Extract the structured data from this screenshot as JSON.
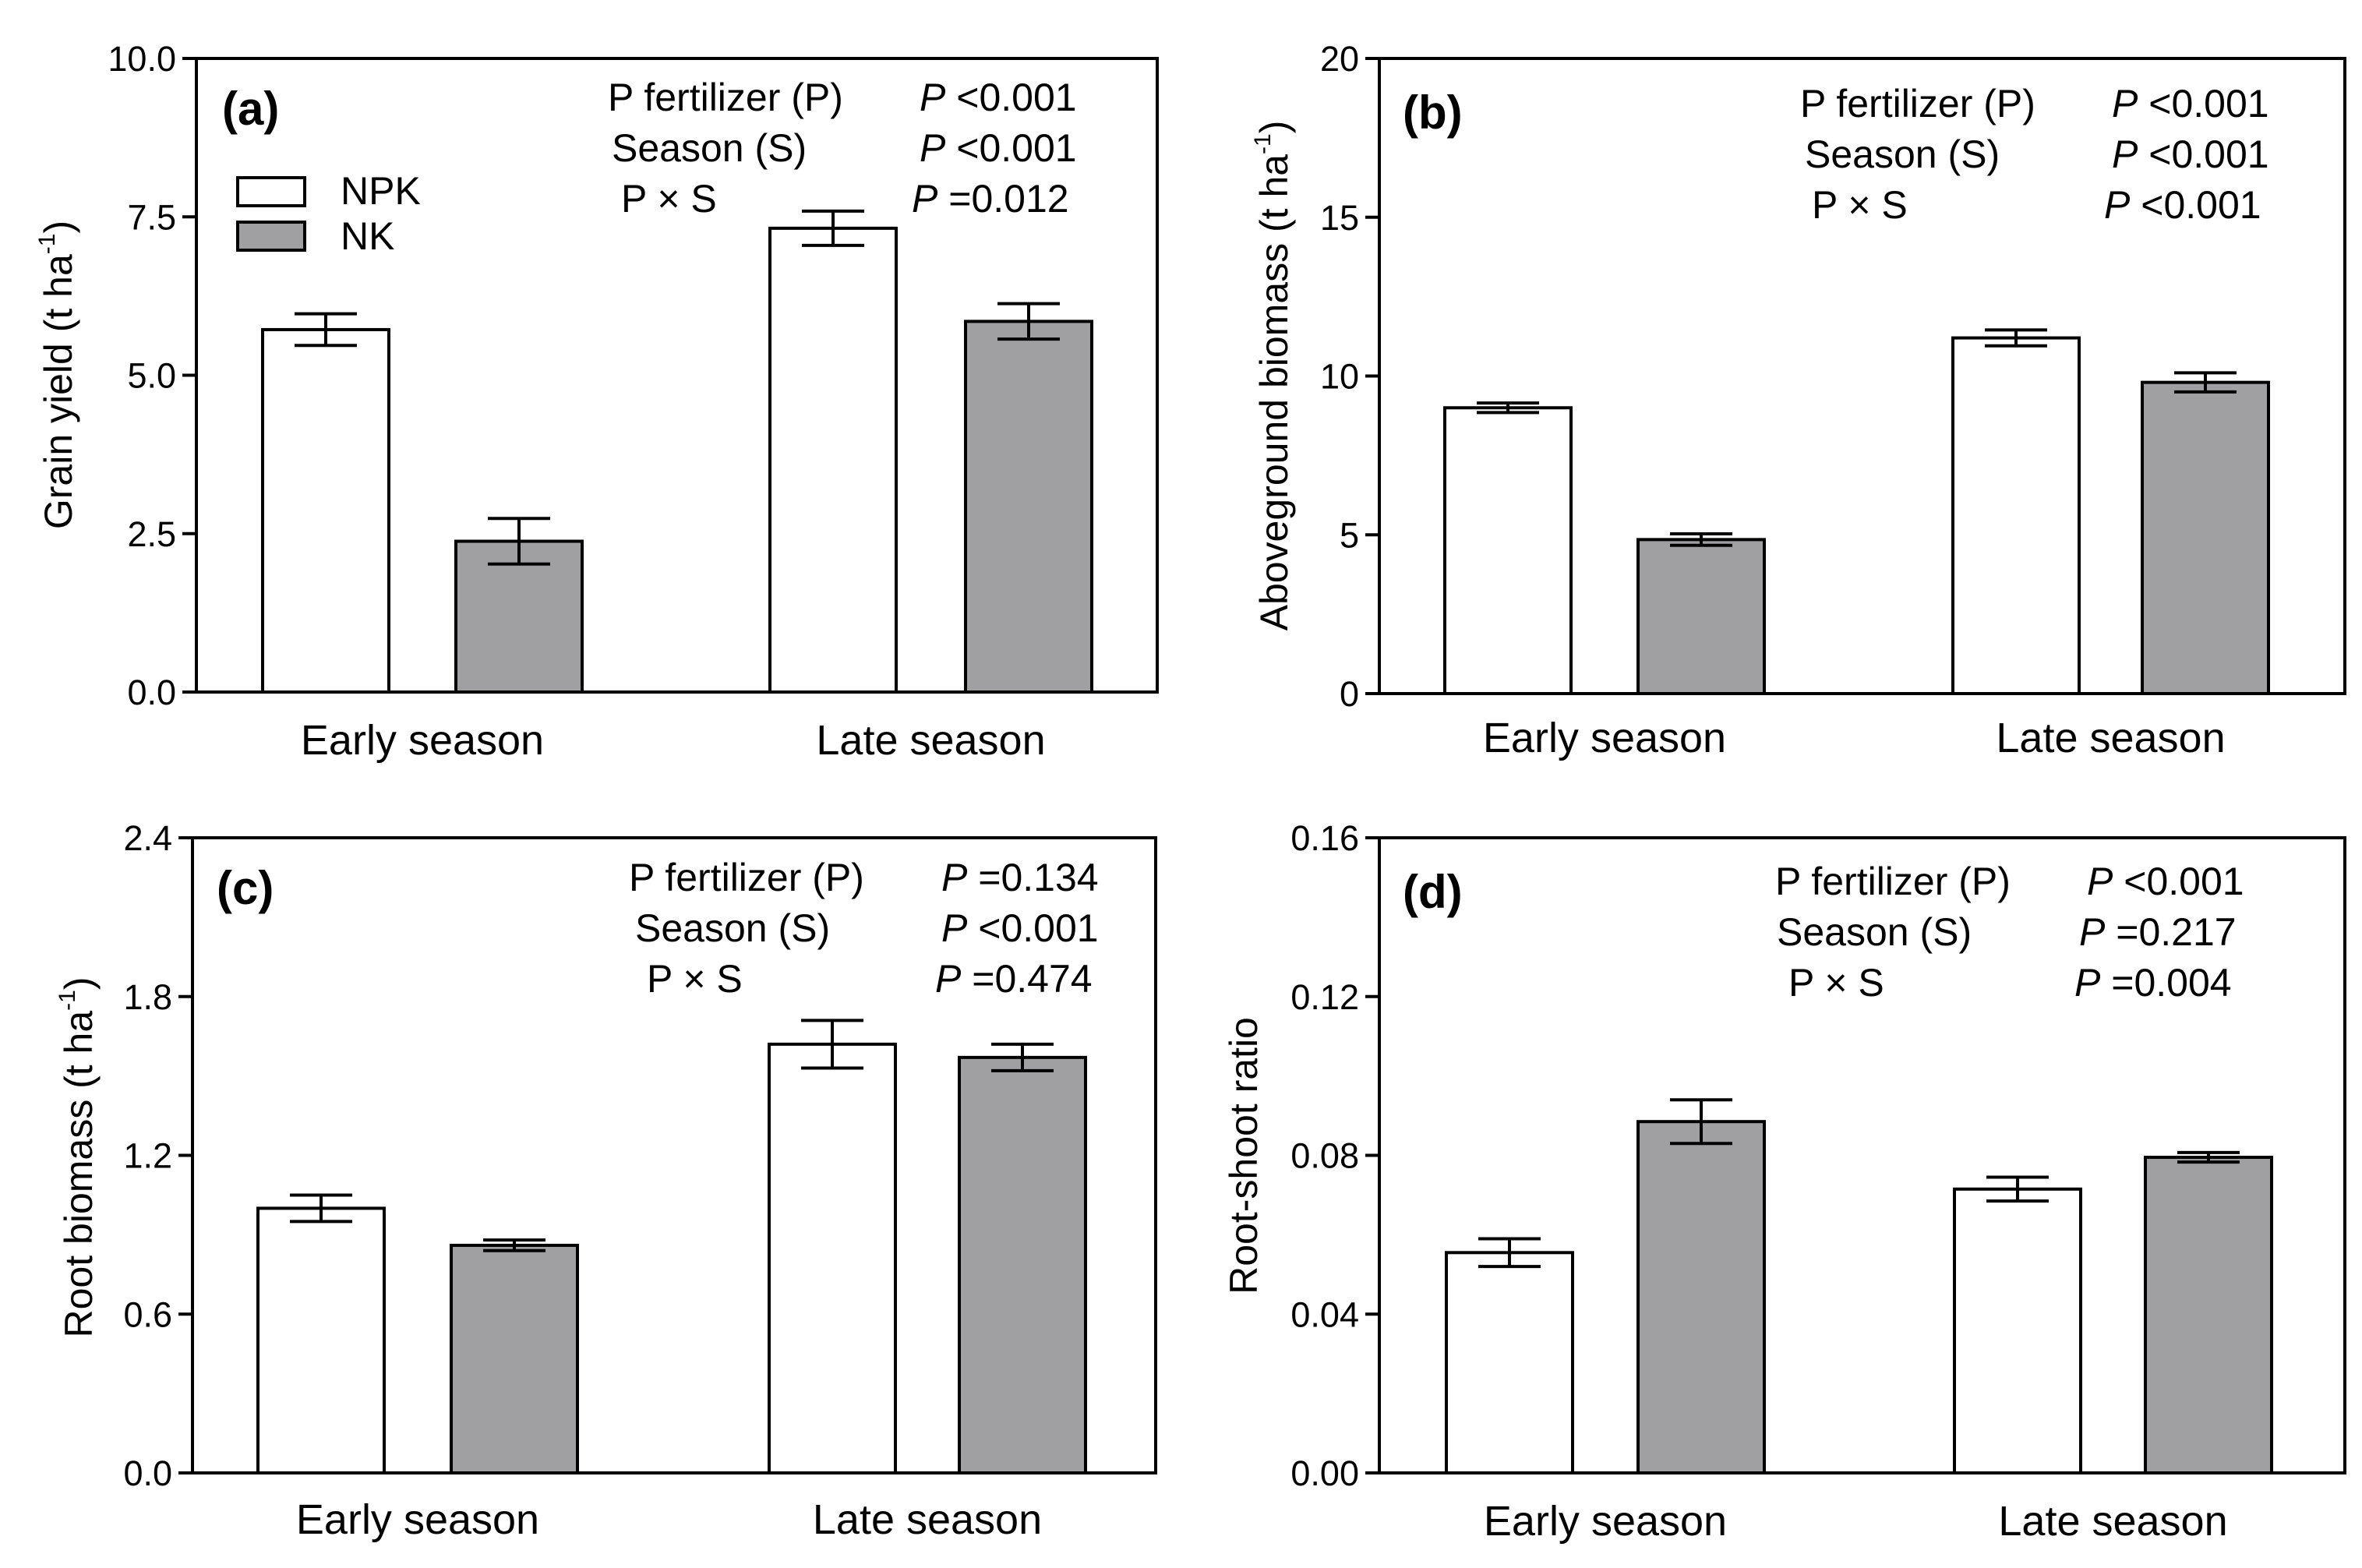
{
  "chart_data": [
    {
      "type": "bar",
      "panel_label": "(a)",
      "ylabel": "Grain yield (t ha-1)",
      "ylabel_main": "Grain yield (t ha",
      "ylabel_sup": "-1",
      "ylabel_end": ")",
      "ylim": [
        0,
        10
      ],
      "yticks": [
        "0.0",
        "2.5",
        "5.0",
        "7.5",
        "10.0"
      ],
      "categories": [
        "Early season",
        "Late season"
      ],
      "series": [
        {
          "name": "NPK",
          "color": "#ffffff",
          "values": [
            5.72,
            7.32
          ],
          "errors": [
            0.25,
            0.27
          ]
        },
        {
          "name": "NK",
          "color": "#a0a0a3",
          "values": [
            2.38,
            5.85
          ],
          "errors": [
            0.36,
            0.28
          ]
        }
      ],
      "legend": {
        "show": true,
        "position": "top-left",
        "entries": [
          "NPK",
          "NK"
        ]
      },
      "stats": [
        {
          "term": "P fertilizer (P)",
          "italic": "P",
          "rest": " <0.001"
        },
        {
          "term": "Season (S)",
          "italic": "P",
          "rest": " <0.001"
        },
        {
          "term": "P × S",
          "italic": "P",
          "rest": " =0.012"
        }
      ]
    },
    {
      "type": "bar",
      "panel_label": "(b)",
      "ylabel": "Aboveground biomass (t ha-1)",
      "ylabel_main": "Aboveground biomass (t ha",
      "ylabel_sup": "-1",
      "ylabel_end": ")",
      "ylim": [
        0,
        20
      ],
      "yticks": [
        "0",
        "5",
        "10",
        "15",
        "20"
      ],
      "categories": [
        "Early season",
        "Late season"
      ],
      "series": [
        {
          "name": "NPK",
          "color": "#ffffff",
          "values": [
            9.0,
            11.2
          ],
          "errors": [
            0.15,
            0.25
          ]
        },
        {
          "name": "NK",
          "color": "#a0a0a3",
          "values": [
            4.85,
            9.8
          ],
          "errors": [
            0.18,
            0.3
          ]
        }
      ],
      "legend": {
        "show": false
      },
      "stats": [
        {
          "term": "P fertilizer (P)",
          "italic": "P",
          "rest": " <0.001"
        },
        {
          "term": "Season (S)",
          "italic": "P",
          "rest": " <0.001"
        },
        {
          "term": "P × S",
          "italic": "P",
          "rest": " <0.001"
        }
      ]
    },
    {
      "type": "bar",
      "panel_label": "(c)",
      "ylabel": "Root biomass (t ha-1)",
      "ylabel_main": "Root biomass (t ha",
      "ylabel_sup": "-1",
      "ylabel_end": ")",
      "ylim": [
        0,
        2.4
      ],
      "yticks": [
        "0.0",
        "0.6",
        "1.2",
        "1.8",
        "2.4"
      ],
      "categories": [
        "Early season",
        "Late season"
      ],
      "series": [
        {
          "name": "NPK",
          "color": "#ffffff",
          "values": [
            1.0,
            1.62
          ],
          "errors": [
            0.05,
            0.09
          ]
        },
        {
          "name": "NK",
          "color": "#a0a0a3",
          "values": [
            0.86,
            1.57
          ],
          "errors": [
            0.02,
            0.05
          ]
        }
      ],
      "legend": {
        "show": false
      },
      "stats": [
        {
          "term": "P fertilizer (P)",
          "italic": "P",
          "rest": " =0.134"
        },
        {
          "term": "Season (S)",
          "italic": "P",
          "rest": " <0.001"
        },
        {
          "term": "P × S",
          "italic": "P",
          "rest": " =0.474"
        }
      ]
    },
    {
      "type": "bar",
      "panel_label": "(d)",
      "ylabel": "Root-shoot ratio",
      "ylabel_main": "Root-shoot ratio",
      "ylabel_sup": "",
      "ylabel_end": "",
      "ylim": [
        0,
        0.16
      ],
      "yticks": [
        "0.00",
        "0.04",
        "0.08",
        "0.12",
        "0.16"
      ],
      "categories": [
        "Early season",
        "Late season"
      ],
      "series": [
        {
          "name": "NPK",
          "color": "#ffffff",
          "values": [
            0.0555,
            0.0715
          ],
          "errors": [
            0.0035,
            0.003
          ]
        },
        {
          "name": "NK",
          "color": "#a0a0a3",
          "values": [
            0.0885,
            0.0795
          ],
          "errors": [
            0.0055,
            0.0012
          ]
        }
      ],
      "legend": {
        "show": false
      },
      "stats": [
        {
          "term": "P fertilizer (P)",
          "italic": "P",
          "rest": " <0.001"
        },
        {
          "term": "Season (S)",
          "italic": "P",
          "rest": " =0.217"
        },
        {
          "term": "P × S",
          "italic": "P",
          "rest": " =0.004"
        }
      ]
    }
  ]
}
